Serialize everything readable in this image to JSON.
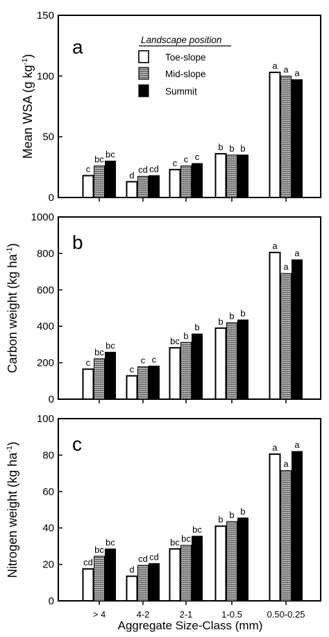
{
  "colors": {
    "toe": "#ffffff",
    "mid": "#9a9a9a",
    "summit": "#000000",
    "frame": "#000000"
  },
  "legend": {
    "title": "Landscape position",
    "items": [
      "Toe-slope",
      "Mid-slope",
      "Summit"
    ]
  },
  "chart_data": [
    {
      "type": "bar",
      "panel_label": "a",
      "ylabel": "Mean WSA (g kg-1)",
      "ylabel_main": "Mean WSA (g kg",
      "ylabel_sup": "-1",
      "ylabel_close": ")",
      "ylim": [
        0,
        150
      ],
      "yticks": [
        "0",
        "50",
        "100",
        "150"
      ],
      "categories": [
        "> 4",
        "4-2",
        "2-1",
        "1-0.5",
        "0.50-0.25"
      ],
      "series": [
        {
          "name": "Toe-slope",
          "values": [
            18,
            13,
            23,
            36,
            103
          ],
          "labels": [
            "c",
            "d",
            "c",
            "b",
            "a"
          ]
        },
        {
          "name": "Mid-slope",
          "values": [
            26,
            17.5,
            26,
            35,
            100
          ],
          "labels": [
            "bc",
            "cd",
            "c",
            "b",
            "a"
          ]
        },
        {
          "name": "Summit",
          "values": [
            30,
            18,
            28,
            35,
            97
          ],
          "labels": [
            "bc",
            "cd",
            "c",
            "b",
            "a"
          ]
        }
      ],
      "legend_position": "top-center"
    },
    {
      "type": "bar",
      "panel_label": "b",
      "ylabel": "Carbon weight (kg ha-1)",
      "ylabel_main": "Carbon weight (kg ha",
      "ylabel_sup": "-1",
      "ylabel_close": ")",
      "ylim": [
        0,
        1000
      ],
      "yticks": [
        "0",
        "200",
        "400",
        "600",
        "800",
        "1000"
      ],
      "categories": [
        "> 4",
        "4-2",
        "2-1",
        "1-0.5",
        "0.50-0.25"
      ],
      "series": [
        {
          "name": "Toe-slope",
          "values": [
            165,
            128,
            282,
            390,
            805
          ],
          "labels": [
            "c",
            "c",
            "bc",
            "b",
            "a"
          ]
        },
        {
          "name": "Mid-slope",
          "values": [
            222,
            178,
            312,
            420,
            690
          ],
          "labels": [
            "bc",
            "c",
            "b",
            "b",
            "a"
          ]
        },
        {
          "name": "Summit",
          "values": [
            258,
            182,
            358,
            435,
            765
          ],
          "labels": [
            "bc",
            "c",
            "b",
            "b",
            "a"
          ]
        }
      ]
    },
    {
      "type": "bar",
      "panel_label": "c",
      "ylabel": "Nitrogen weight (kg ha-1)",
      "ylabel_main": "Nitrogen weight (kg ha",
      "ylabel_sup": "-1",
      "ylabel_close": ")",
      "ylim": [
        0,
        100
      ],
      "yticks": [
        "0",
        "20",
        "40",
        "60",
        "80",
        "100"
      ],
      "categories": [
        "> 4",
        "4-2",
        "2-1",
        "1-0.5",
        "0.50-0.25"
      ],
      "series": [
        {
          "name": "Toe-slope",
          "values": [
            17.5,
            13.5,
            28.5,
            41,
            80.5
          ],
          "labels": [
            "cd",
            "d",
            "bc",
            "b",
            "a"
          ]
        },
        {
          "name": "Mid-slope",
          "values": [
            24.5,
            19.5,
            30.5,
            43.5,
            71.5
          ],
          "labels": [
            "bc",
            "cd",
            "bc",
            "b",
            "a"
          ]
        },
        {
          "name": "Summit",
          "values": [
            28.5,
            20.5,
            35.5,
            45.5,
            82
          ],
          "labels": [
            "bc",
            "cd",
            "bc",
            "b",
            "a"
          ]
        }
      ]
    }
  ],
  "xlabel": "Aggregate Size-Class (mm)"
}
